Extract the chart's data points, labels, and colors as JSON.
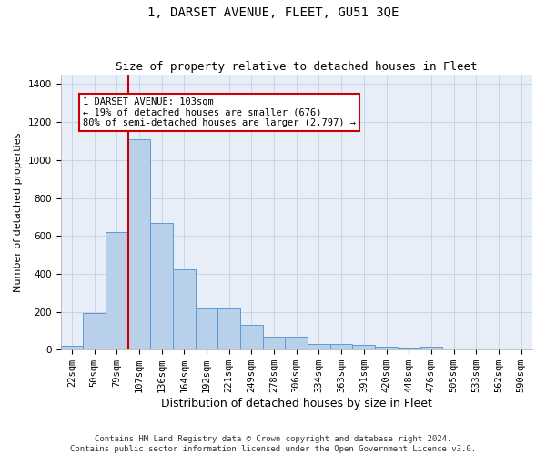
{
  "title": "1, DARSET AVENUE, FLEET, GU51 3QE",
  "subtitle": "Size of property relative to detached houses in Fleet",
  "xlabel": "Distribution of detached houses by size in Fleet",
  "ylabel": "Number of detached properties",
  "footer_line1": "Contains HM Land Registry data © Crown copyright and database right 2024.",
  "footer_line2": "Contains public sector information licensed under the Open Government Licence v3.0.",
  "bar_labels": [
    "22sqm",
    "50sqm",
    "79sqm",
    "107sqm",
    "136sqm",
    "164sqm",
    "192sqm",
    "221sqm",
    "249sqm",
    "278sqm",
    "306sqm",
    "334sqm",
    "363sqm",
    "391sqm",
    "420sqm",
    "448sqm",
    "476sqm",
    "505sqm",
    "533sqm",
    "562sqm",
    "590sqm"
  ],
  "bar_values": [
    20,
    195,
    620,
    1110,
    670,
    425,
    215,
    215,
    130,
    70,
    70,
    30,
    30,
    25,
    15,
    10,
    15,
    0,
    0,
    0,
    0
  ],
  "bar_color": "#b8d0ea",
  "bar_edgecolor": "#5b9bd5",
  "grid_color": "#c8d4e8",
  "background_color": "#e8eef8",
  "red_line_x": 2.5,
  "red_line_color": "#cc0000",
  "annotation_text": "1 DARSET AVENUE: 103sqm\n← 19% of detached houses are smaller (676)\n80% of semi-detached houses are larger (2,797) →",
  "annotation_box_color": "#cc0000",
  "ylim": [
    0,
    1450
  ],
  "yticks": [
    0,
    200,
    400,
    600,
    800,
    1000,
    1200,
    1400
  ],
  "title_fontsize": 10,
  "subtitle_fontsize": 9,
  "ylabel_fontsize": 8,
  "xlabel_fontsize": 9,
  "tick_fontsize": 7.5,
  "ann_fontsize": 7.5,
  "footer_fontsize": 6.5
}
